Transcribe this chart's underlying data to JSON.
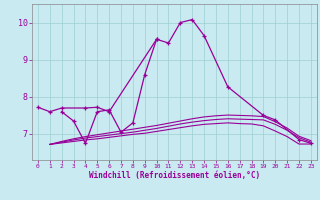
{
  "xlabel": "Windchill (Refroidissement éolien,°C)",
  "background_color": "#c8eaf0",
  "grid_color": "#9ecfcf",
  "line_color": "#990099",
  "xlim": [
    -0.5,
    23.5
  ],
  "ylim": [
    6.3,
    10.5
  ],
  "yticks": [
    7,
    8,
    9,
    10
  ],
  "xticks": [
    0,
    1,
    2,
    3,
    4,
    5,
    6,
    7,
    8,
    9,
    10,
    11,
    12,
    13,
    14,
    15,
    16,
    17,
    18,
    19,
    20,
    21,
    22,
    23
  ],
  "series": [
    {
      "x": [
        0,
        1,
        2,
        4,
        5,
        6,
        10,
        11,
        12,
        13,
        14,
        16,
        19,
        20,
        22,
        23
      ],
      "y": [
        7.72,
        7.6,
        7.7,
        7.7,
        7.72,
        7.6,
        9.55,
        9.45,
        10.0,
        10.08,
        9.65,
        8.27,
        7.5,
        7.38,
        6.85,
        6.75
      ],
      "markers": true
    },
    {
      "x": [
        2,
        3,
        4,
        5,
        6,
        7,
        8,
        9,
        10
      ],
      "y": [
        7.6,
        7.35,
        6.75,
        7.6,
        7.65,
        7.05,
        7.3,
        8.6,
        9.55
      ],
      "markers": true
    },
    {
      "x": [
        1,
        2,
        3,
        4,
        5,
        6,
        7,
        8,
        9,
        10,
        11,
        12,
        13,
        14,
        15,
        16,
        17,
        18,
        19,
        20,
        21,
        22,
        23
      ],
      "y": [
        6.72,
        6.76,
        6.8,
        6.84,
        6.87,
        6.91,
        6.95,
        6.99,
        7.02,
        7.07,
        7.12,
        7.17,
        7.22,
        7.26,
        7.28,
        7.3,
        7.28,
        7.27,
        7.22,
        7.08,
        6.93,
        6.73,
        6.73
      ],
      "markers": false
    },
    {
      "x": [
        1,
        2,
        3,
        4,
        5,
        6,
        7,
        8,
        9,
        10,
        11,
        12,
        13,
        14,
        15,
        16,
        17,
        18,
        19,
        20,
        21,
        22,
        23
      ],
      "y": [
        6.72,
        6.78,
        6.84,
        6.89,
        6.93,
        6.97,
        7.01,
        7.05,
        7.1,
        7.15,
        7.21,
        7.27,
        7.32,
        7.36,
        7.39,
        7.41,
        7.4,
        7.39,
        7.38,
        7.26,
        7.1,
        6.9,
        6.78
      ],
      "markers": false
    },
    {
      "x": [
        1,
        2,
        3,
        4,
        5,
        6,
        7,
        8,
        9,
        10,
        11,
        12,
        13,
        14,
        15,
        16,
        17,
        18,
        19,
        20,
        21,
        22,
        23
      ],
      "y": [
        6.72,
        6.8,
        6.87,
        6.93,
        6.98,
        7.03,
        7.08,
        7.13,
        7.18,
        7.23,
        7.29,
        7.35,
        7.41,
        7.46,
        7.49,
        7.51,
        7.5,
        7.49,
        7.47,
        7.33,
        7.16,
        6.94,
        6.82
      ],
      "markers": false
    }
  ]
}
